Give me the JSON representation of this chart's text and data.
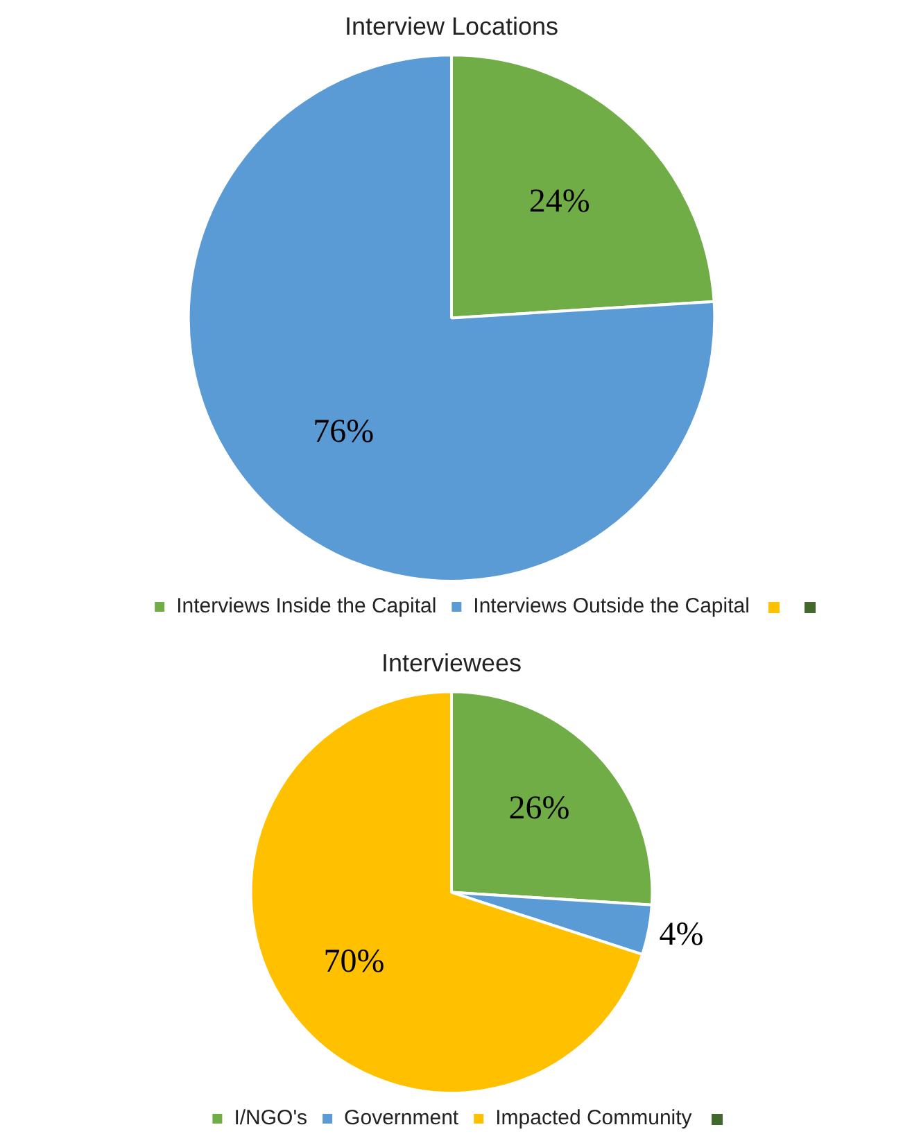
{
  "chart_data": [
    {
      "type": "pie",
      "title": "Interview Locations",
      "categories": [
        "Interviews Inside the Capital",
        "Interviews Outside the Capital"
      ],
      "values": [
        24,
        76
      ],
      "value_labels": [
        "24%",
        "76%"
      ],
      "colors": [
        "#70ad47",
        "#5b9bd5"
      ],
      "legend": "bottom"
    },
    {
      "type": "pie",
      "title": "Interviewees",
      "categories": [
        "I/NGO's",
        "Government",
        "Impacted Community"
      ],
      "values": [
        26,
        4,
        70
      ],
      "value_labels": [
        "26%",
        "4%",
        "70%"
      ],
      "colors": [
        "#70ad47",
        "#5b9bd5",
        "#ffc000"
      ],
      "legend": "bottom"
    }
  ]
}
